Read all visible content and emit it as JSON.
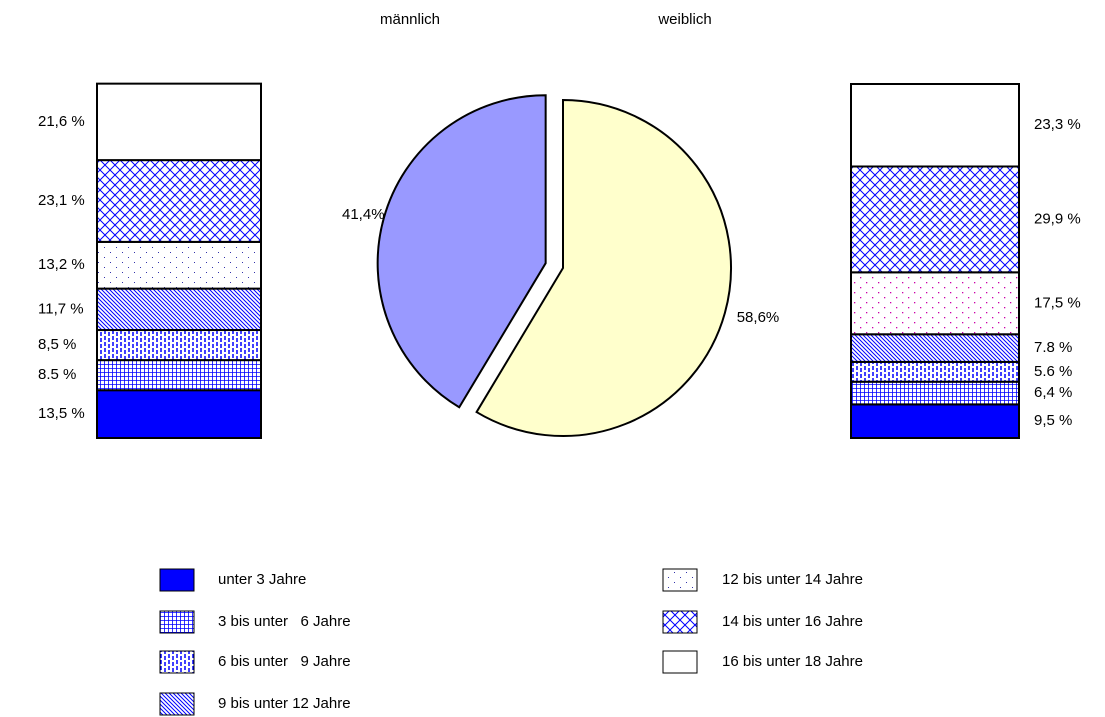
{
  "chart_data": [
    {
      "type": "pie",
      "categories": [
        "männlich",
        "weiblich"
      ],
      "values": [
        41.4,
        58.6
      ],
      "value_labels": [
        "41,4%",
        "58,6%"
      ],
      "colors": [
        "#9999ff",
        "#ffffcc"
      ]
    },
    {
      "type": "stacked_bar",
      "label_side": "left",
      "ylim": [
        0,
        100
      ],
      "values": [
        13.5,
        8.5,
        8.5,
        11.7,
        13.2,
        23.1,
        21.6
      ],
      "value_labels": [
        "13,5 %",
        "8.5 %",
        "8,5 %",
        "11,7 %",
        "13,2 %",
        "23,1 %",
        "21,6 %"
      ]
    },
    {
      "type": "stacked_bar",
      "label_side": "right",
      "ylim": [
        0,
        100
      ],
      "values": [
        9.5,
        6.4,
        5.6,
        7.8,
        17.5,
        29.9,
        23.3
      ],
      "value_labels": [
        "9,5 %",
        "6,4 %",
        "5.6 %",
        "7.8 %",
        "17,5 %",
        "29,9 %",
        "23,3 %"
      ]
    }
  ],
  "legend": [
    "unter 3 Jahre",
    "3 bis unter   6 Jahre",
    "6 bis unter   9 Jahre",
    "9 bis unter 12 Jahre",
    "12 bis unter 14 Jahre",
    "14 bis unter 16 Jahre",
    "16 bis unter 18 Jahre"
  ]
}
